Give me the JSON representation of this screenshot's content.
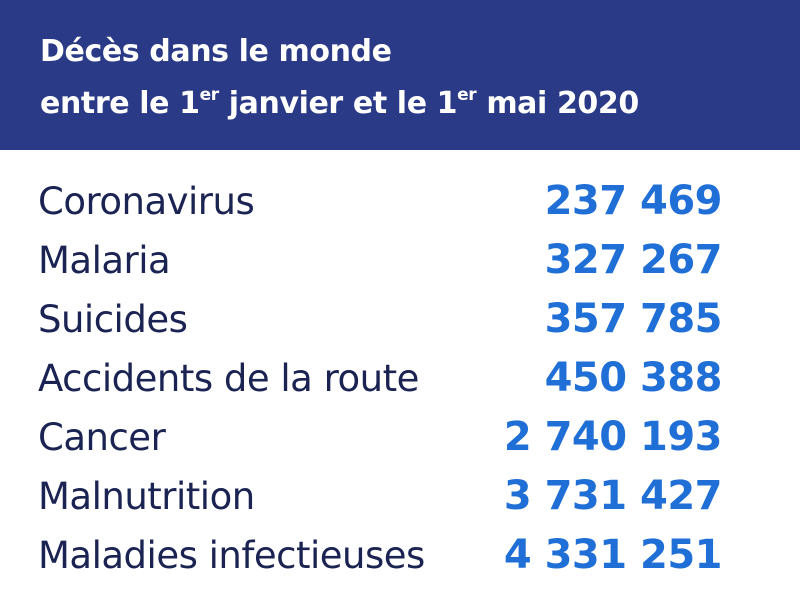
{
  "header": {
    "title_line1": "Décès dans le monde",
    "title_line2_part1": "entre le 1",
    "title_line2_sup1": "er",
    "title_line2_part2": " janvier et le 1",
    "title_line2_sup2": "er",
    "title_line2_part3": " mai 2020"
  },
  "colors": {
    "header_background": "#2a3a86",
    "header_text": "#ffffff",
    "label_text": "#1a2352",
    "value_text": "#1f6fd6"
  },
  "rows": [
    {
      "cause": "Coronavirus",
      "value": "237 469"
    },
    {
      "cause": "Malaria",
      "value": "327 267"
    },
    {
      "cause": "Suicides",
      "value": "357 785"
    },
    {
      "cause": "Accidents de la route",
      "value": "450 388"
    },
    {
      "cause": "Cancer",
      "value": "2 740 193"
    },
    {
      "cause": "Malnutrition",
      "value": "3 731 427"
    },
    {
      "cause": "Maladies infectieuses",
      "value": "4 331 251"
    }
  ]
}
